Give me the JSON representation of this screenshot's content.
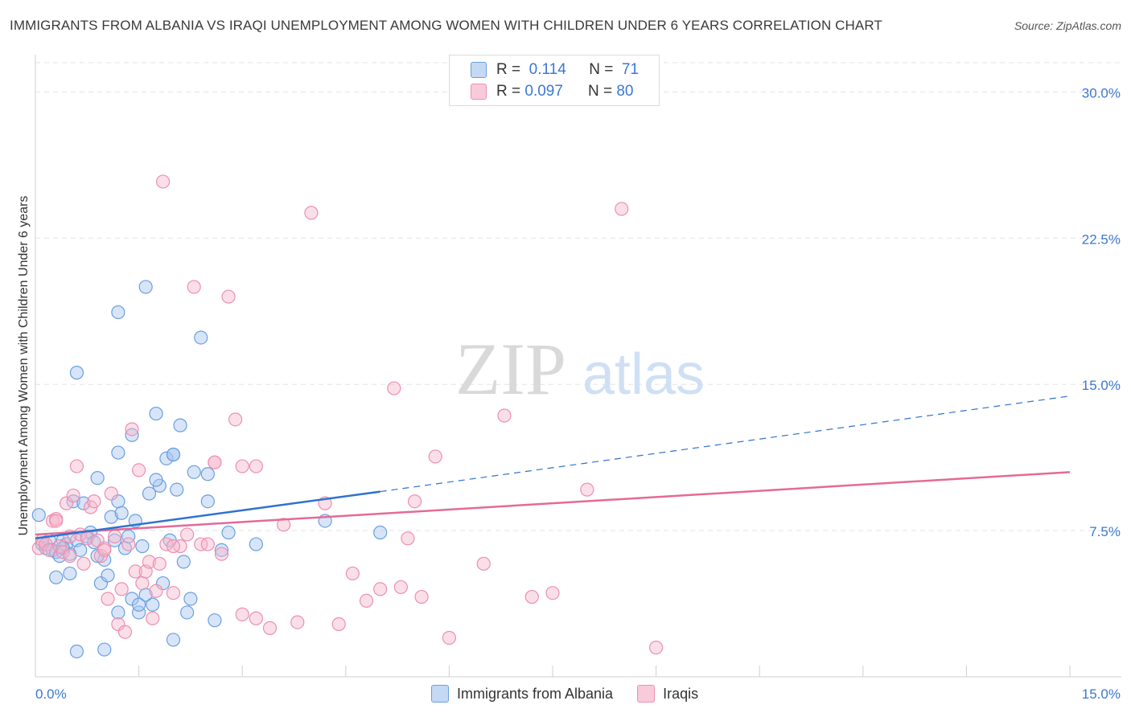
{
  "title": "IMMIGRANTS FROM ALBANIA VS IRAQI UNEMPLOYMENT AMONG WOMEN WITH CHILDREN UNDER 6 YEARS CORRELATION CHART",
  "source": "Source: ZipAtlas.com",
  "watermark": {
    "zip": "ZIP",
    "atlas": "atlas"
  },
  "legend": {
    "r_label": "R =",
    "n_label": "N =",
    "rows": [
      {
        "r": "0.114",
        "n": "71"
      },
      {
        "r": "0.097",
        "n": "80"
      }
    ]
  },
  "colors": {
    "blue_fill": "#a9c6f0",
    "blue_stroke": "#6a9fe0",
    "blue_line": "#2f72d0",
    "pink_fill": "#f6b8cc",
    "pink_stroke": "#ec8fb0",
    "pink_line": "#e46a97",
    "axis_text": "#3a78d4",
    "grid": "#e3e3e3"
  },
  "chart_data": {
    "type": "scatter",
    "title": "IMMIGRANTS FROM ALBANIA VS IRAQI UNEMPLOYMENT AMONG WOMEN WITH CHILDREN UNDER 6 YEARS CORRELATION CHART",
    "xlabel": "",
    "ylabel": "Unemployment Among Women with Children Under 6 years",
    "xlim": [
      0,
      15
    ],
    "ylim": [
      0,
      31.5
    ],
    "x_tick_labels": [
      "0.0%",
      "15.0%"
    ],
    "y_ticks": [
      7.5,
      15.0,
      22.5,
      30.0
    ],
    "y_tick_labels": [
      "7.5%",
      "15.0%",
      "22.5%",
      "30.0%"
    ],
    "series": [
      {
        "name": "Immigrants from Albania",
        "color": "blue",
        "r": 0.114,
        "n": 71,
        "trend": {
          "x0": 0.0,
          "y0": 7.1,
          "x1": 5.0,
          "y1": 9.5,
          "dashed_to_x": 15.0,
          "dashed_to_y": 14.4
        },
        "points": [
          [
            0.05,
            8.3
          ],
          [
            0.1,
            6.8
          ],
          [
            0.15,
            6.6
          ],
          [
            0.2,
            7.0
          ],
          [
            0.25,
            6.5
          ],
          [
            0.3,
            6.4
          ],
          [
            0.35,
            6.2
          ],
          [
            0.4,
            7.0
          ],
          [
            0.45,
            6.8
          ],
          [
            0.5,
            6.3
          ],
          [
            0.55,
            9.0
          ],
          [
            0.6,
            7.0
          ],
          [
            0.65,
            6.5
          ],
          [
            0.7,
            8.9
          ],
          [
            0.75,
            7.2
          ],
          [
            0.8,
            7.4
          ],
          [
            0.85,
            6.9
          ],
          [
            0.9,
            10.2
          ],
          [
            0.95,
            4.8
          ],
          [
            1.0,
            6.0
          ],
          [
            1.05,
            5.2
          ],
          [
            1.1,
            8.2
          ],
          [
            1.15,
            7.0
          ],
          [
            1.2,
            9.0
          ],
          [
            1.25,
            8.4
          ],
          [
            1.3,
            6.6
          ],
          [
            1.35,
            7.2
          ],
          [
            1.4,
            4.0
          ],
          [
            1.45,
            8.0
          ],
          [
            1.5,
            3.3
          ],
          [
            1.55,
            6.7
          ],
          [
            1.6,
            4.2
          ],
          [
            1.65,
            9.4
          ],
          [
            1.7,
            3.7
          ],
          [
            1.75,
            13.5
          ],
          [
            1.8,
            9.8
          ],
          [
            1.85,
            4.8
          ],
          [
            1.9,
            11.2
          ],
          [
            1.95,
            7.0
          ],
          [
            2.0,
            11.4
          ],
          [
            2.05,
            9.6
          ],
          [
            2.1,
            12.9
          ],
          [
            2.15,
            5.9
          ],
          [
            2.2,
            3.3
          ],
          [
            2.25,
            4.0
          ],
          [
            2.3,
            10.5
          ],
          [
            2.4,
            17.4
          ],
          [
            2.5,
            10.4
          ],
          [
            2.6,
            2.9
          ],
          [
            2.7,
            6.5
          ],
          [
            2.8,
            7.4
          ],
          [
            0.3,
            5.1
          ],
          [
            0.5,
            5.3
          ],
          [
            0.6,
            1.3
          ],
          [
            1.0,
            1.4
          ],
          [
            1.2,
            3.3
          ],
          [
            1.5,
            3.7
          ],
          [
            2.0,
            1.9
          ],
          [
            1.2,
            18.7
          ],
          [
            1.6,
            20.0
          ],
          [
            0.6,
            15.6
          ],
          [
            1.2,
            11.5
          ],
          [
            1.4,
            12.4
          ],
          [
            2.5,
            9.0
          ],
          [
            3.2,
            6.8
          ],
          [
            4.2,
            8.0
          ],
          [
            5.0,
            7.4
          ],
          [
            0.9,
            6.2
          ],
          [
            0.4,
            6.6
          ],
          [
            1.75,
            10.1
          ],
          [
            2.0,
            11.4
          ]
        ]
      },
      {
        "name": "Iraqis",
        "color": "pink",
        "r": 0.097,
        "n": 80,
        "trend": {
          "x0": 0.0,
          "y0": 7.3,
          "x1": 15.0,
          "y1": 10.5
        },
        "points": [
          [
            0.05,
            6.6
          ],
          [
            0.1,
            7.0
          ],
          [
            0.15,
            6.8
          ],
          [
            0.2,
            6.5
          ],
          [
            0.25,
            8.0
          ],
          [
            0.3,
            8.1
          ],
          [
            0.35,
            6.7
          ],
          [
            0.4,
            6.4
          ],
          [
            0.45,
            8.9
          ],
          [
            0.5,
            6.2
          ],
          [
            0.55,
            9.3
          ],
          [
            0.6,
            10.8
          ],
          [
            0.65,
            7.3
          ],
          [
            0.7,
            5.8
          ],
          [
            0.75,
            7.1
          ],
          [
            0.8,
            8.7
          ],
          [
            0.85,
            9.0
          ],
          [
            0.9,
            7.0
          ],
          [
            0.95,
            6.2
          ],
          [
            1.0,
            6.6
          ],
          [
            1.05,
            4.0
          ],
          [
            1.1,
            9.4
          ],
          [
            1.15,
            7.2
          ],
          [
            1.2,
            2.7
          ],
          [
            1.25,
            4.5
          ],
          [
            1.3,
            2.3
          ],
          [
            1.35,
            6.8
          ],
          [
            1.4,
            12.7
          ],
          [
            1.45,
            5.4
          ],
          [
            1.5,
            10.6
          ],
          [
            1.55,
            4.8
          ],
          [
            1.6,
            5.4
          ],
          [
            1.65,
            5.9
          ],
          [
            1.7,
            3.0
          ],
          [
            1.75,
            4.4
          ],
          [
            1.8,
            5.8
          ],
          [
            1.85,
            25.4
          ],
          [
            1.9,
            6.8
          ],
          [
            2.0,
            4.3
          ],
          [
            2.1,
            6.7
          ],
          [
            2.2,
            7.3
          ],
          [
            2.3,
            20.0
          ],
          [
            2.4,
            6.8
          ],
          [
            2.5,
            6.8
          ],
          [
            2.6,
            11.0
          ],
          [
            2.7,
            6.3
          ],
          [
            2.8,
            19.5
          ],
          [
            2.9,
            13.2
          ],
          [
            3.0,
            3.2
          ],
          [
            3.2,
            3.0
          ],
          [
            3.4,
            2.5
          ],
          [
            3.6,
            7.8
          ],
          [
            3.8,
            2.8
          ],
          [
            4.0,
            23.8
          ],
          [
            4.2,
            8.9
          ],
          [
            4.4,
            2.7
          ],
          [
            4.6,
            5.3
          ],
          [
            4.8,
            3.9
          ],
          [
            5.0,
            4.5
          ],
          [
            5.2,
            14.8
          ],
          [
            5.3,
            4.6
          ],
          [
            5.4,
            7.1
          ],
          [
            5.5,
            9.0
          ],
          [
            5.6,
            4.1
          ],
          [
            5.8,
            11.3
          ],
          [
            6.0,
            2.0
          ],
          [
            6.5,
            5.8
          ],
          [
            6.8,
            13.4
          ],
          [
            7.2,
            4.1
          ],
          [
            7.5,
            4.3
          ],
          [
            8.0,
            9.6
          ],
          [
            8.5,
            24.0
          ],
          [
            9.0,
            1.5
          ],
          [
            2.0,
            6.7
          ],
          [
            1.0,
            6.5
          ],
          [
            0.5,
            7.2
          ],
          [
            0.3,
            8.0
          ],
          [
            3.2,
            10.8
          ],
          [
            2.6,
            11.0
          ],
          [
            3.0,
            10.8
          ]
        ]
      }
    ]
  },
  "bottom_legend": [
    {
      "label": "Immigrants from Albania"
    },
    {
      "label": "Iraqis"
    }
  ]
}
